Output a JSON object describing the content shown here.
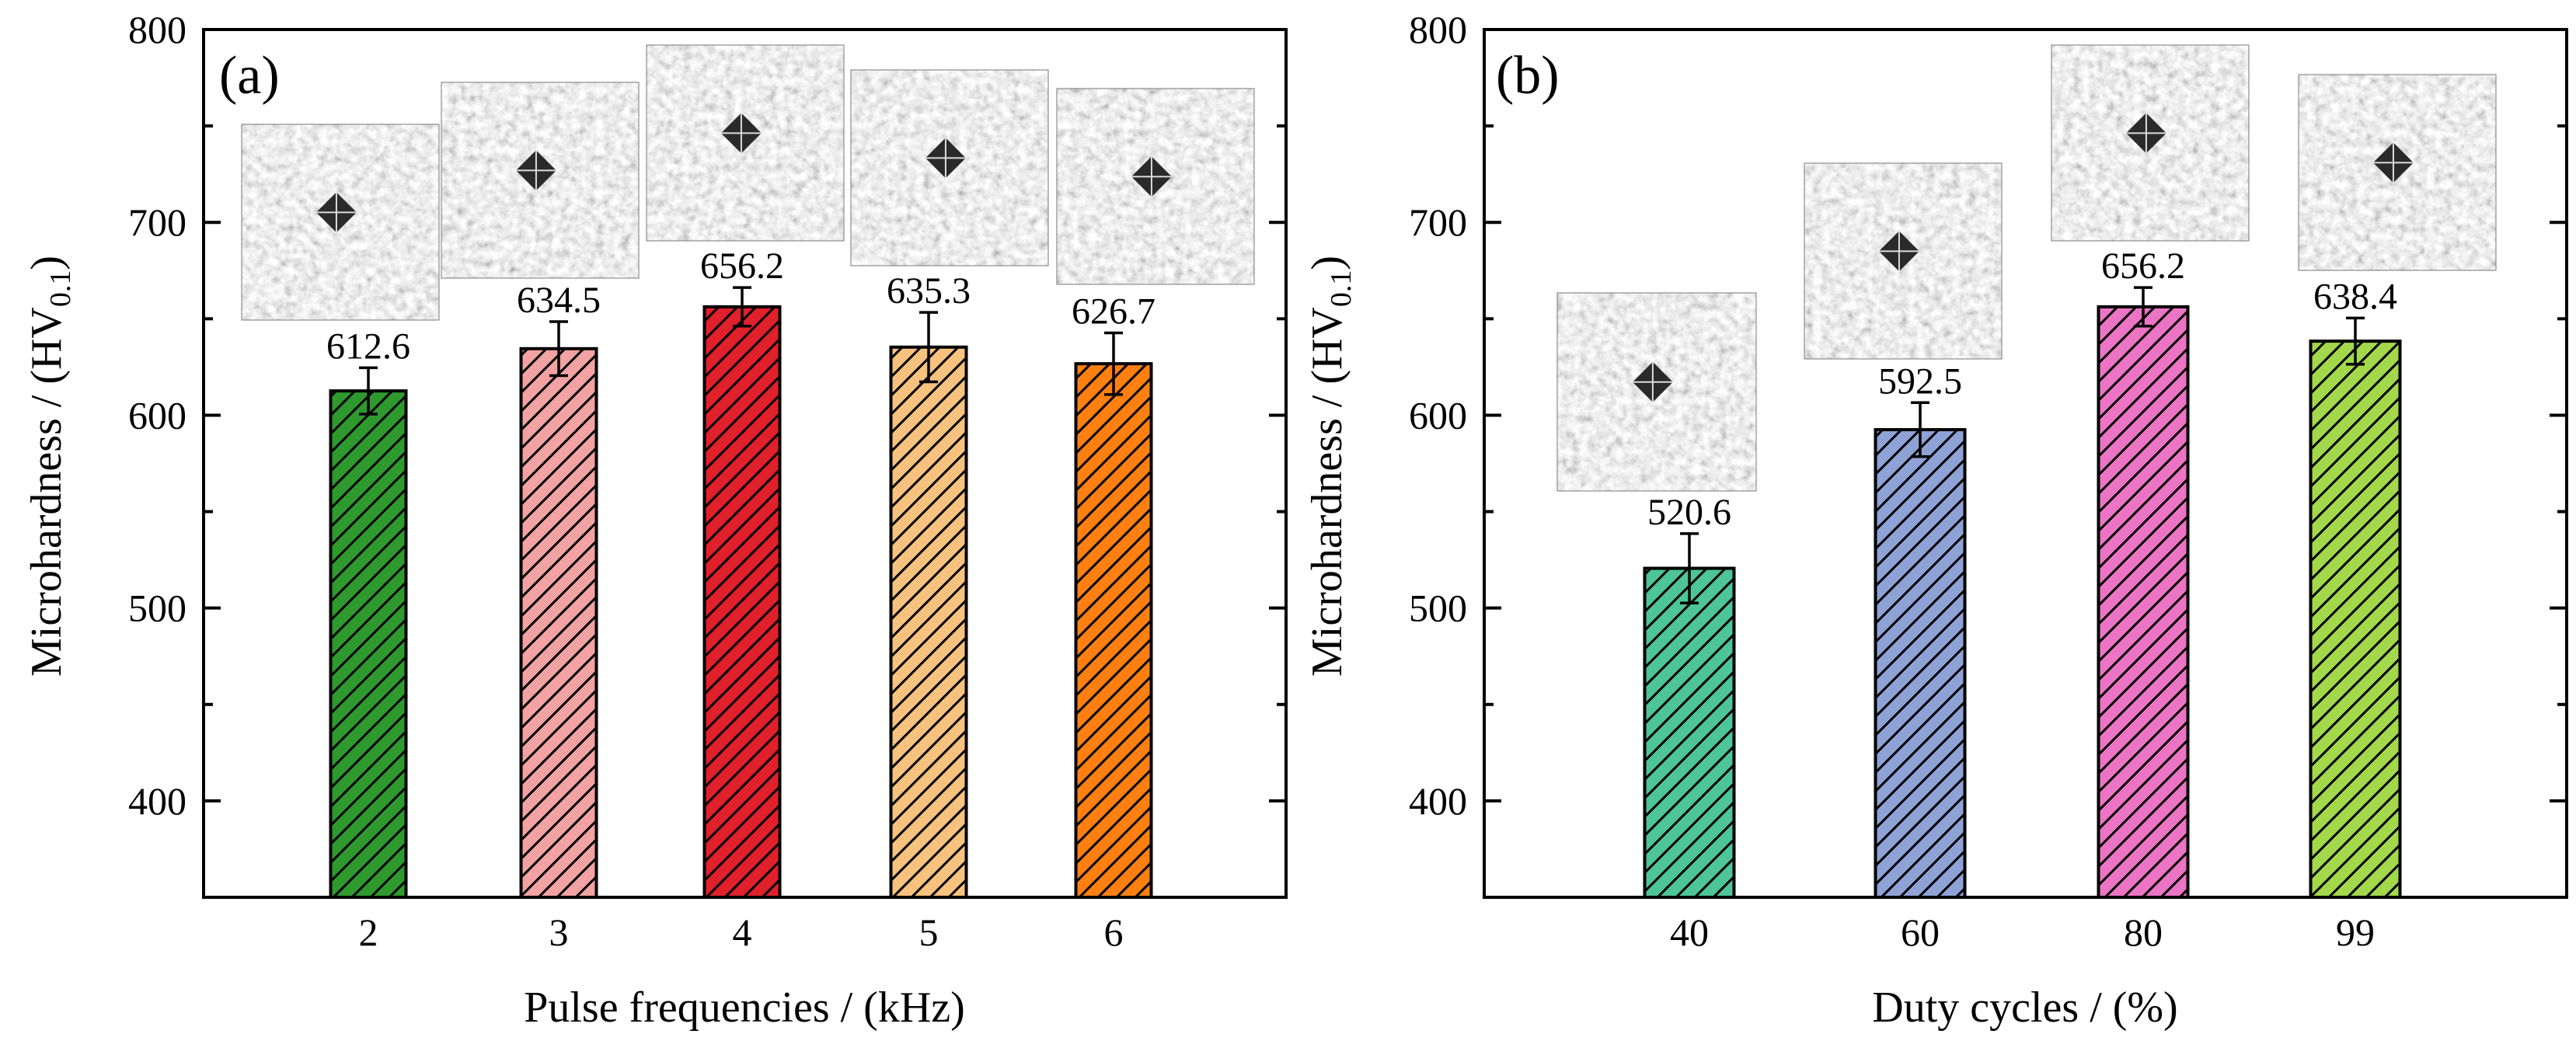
{
  "chart_data": [
    {
      "type": "bar",
      "panel_label": "(a)",
      "categories": [
        "2",
        "3",
        "4",
        "5",
        "6"
      ],
      "values": [
        612.6,
        634.5,
        656.2,
        635.3,
        626.7
      ],
      "value_labels": [
        "612.6",
        "634.5",
        "656.2",
        "635.3",
        "626.7"
      ],
      "errors": [
        12,
        14,
        10,
        18,
        16
      ],
      "colors": [
        "#2e9a2e",
        "#f2a2a2",
        "#e0202a",
        "#f7c27e",
        "#ff8010"
      ],
      "hatch": "diagonal",
      "xlabel": "Pulse frequencies / (kHz)",
      "ylabel": "Microhardness / (HV",
      "ylabel_subscript": "0.1",
      "ylabel_end": ")",
      "ylim": [
        350,
        800
      ],
      "yticks": [
        400,
        500,
        600,
        700,
        800
      ],
      "ytick_labels": [
        "400",
        "500",
        "600",
        "700",
        "800"
      ],
      "insets": [
        "micrograph",
        "micrograph",
        "micrograph",
        "micrograph",
        "micrograph"
      ]
    },
    {
      "type": "bar",
      "panel_label": "(b)",
      "categories": [
        "40",
        "60",
        "80",
        "99"
      ],
      "values": [
        520.6,
        592.5,
        656.2,
        638.4
      ],
      "value_labels": [
        "520.6",
        "592.5",
        "656.2",
        "638.4"
      ],
      "errors": [
        18,
        14,
        10,
        12
      ],
      "colors": [
        "#4ec49a",
        "#8fa2d6",
        "#ec74c4",
        "#a2d84a"
      ],
      "hatch": "diagonal",
      "xlabel": "Duty cycles / (%)",
      "ylabel": "Microhardness / (HV",
      "ylabel_subscript": "0.1",
      "ylabel_end": ")",
      "ylim": [
        350,
        800
      ],
      "yticks": [
        400,
        500,
        600,
        700,
        800
      ],
      "ytick_labels": [
        "400",
        "500",
        "600",
        "700",
        "800"
      ],
      "insets": [
        "micrograph",
        "micrograph",
        "micrograph",
        "micrograph"
      ]
    }
  ]
}
